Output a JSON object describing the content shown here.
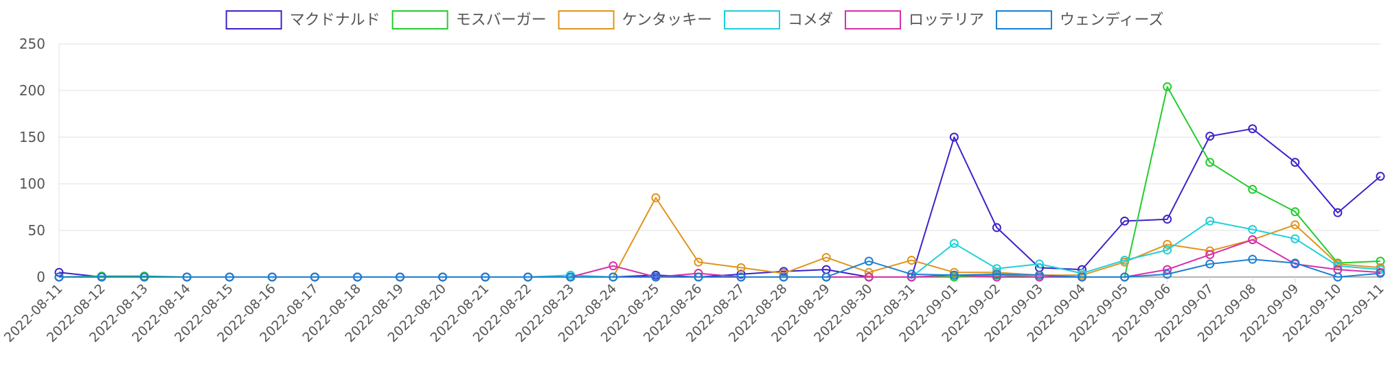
{
  "chart_data": {
    "type": "line",
    "title": "",
    "xlabel": "",
    "ylabel": "",
    "ylim": [
      0,
      250
    ],
    "yticks": [
      0,
      50,
      100,
      150,
      200,
      250
    ],
    "grid": true,
    "legend_position": "top-center",
    "categories": [
      "2022-08-11",
      "2022-08-12",
      "2022-08-13",
      "2022-08-14",
      "2022-08-15",
      "2022-08-16",
      "2022-08-17",
      "2022-08-18",
      "2022-08-19",
      "2022-08-20",
      "2022-08-21",
      "2022-08-22",
      "2022-08-23",
      "2022-08-24",
      "2022-08-25",
      "2022-08-26",
      "2022-08-27",
      "2022-08-28",
      "2022-08-29",
      "2022-08-30",
      "2022-08-31",
      "2022-09-01",
      "2022-09-02",
      "2022-09-03",
      "2022-09-04",
      "2022-09-05",
      "2022-09-06",
      "2022-09-07",
      "2022-09-08",
      "2022-09-09",
      "2022-09-10",
      "2022-09-11"
    ],
    "series": [
      {
        "name": "マクドナルド",
        "color": "#3b22c9",
        "values": [
          5,
          0,
          0,
          0,
          0,
          0,
          0,
          0,
          0,
          0,
          0,
          0,
          0,
          0,
          2,
          0,
          3,
          6,
          8,
          0,
          0,
          150,
          53,
          10,
          8,
          60,
          62,
          151,
          159,
          123,
          69,
          108
        ]
      },
      {
        "name": "モスバーガー",
        "color": "#22cc2e",
        "values": [
          0,
          1,
          1,
          0,
          0,
          0,
          0,
          0,
          0,
          0,
          0,
          0,
          0,
          0,
          0,
          0,
          0,
          0,
          0,
          0,
          0,
          0,
          2,
          0,
          0,
          0,
          204,
          123,
          94,
          70,
          15,
          17
        ]
      },
      {
        "name": "ケンタッキー",
        "color": "#e0941c",
        "values": [
          0,
          0,
          0,
          0,
          0,
          0,
          0,
          0,
          0,
          0,
          0,
          0,
          0,
          0,
          85,
          16,
          10,
          4,
          21,
          5,
          18,
          5,
          5,
          2,
          2,
          16,
          35,
          28,
          40,
          56,
          14,
          10
        ]
      },
      {
        "name": "コメダ",
        "color": "#1fd0d8",
        "values": [
          0,
          0,
          0,
          0,
          0,
          0,
          0,
          0,
          0,
          0,
          0,
          0,
          2,
          0,
          0,
          0,
          0,
          0,
          0,
          0,
          0,
          36,
          9,
          14,
          4,
          18,
          29,
          60,
          51,
          41,
          12,
          8
        ]
      },
      {
        "name": "ロッテリア",
        "color": "#d52fa8",
        "values": [
          0,
          0,
          0,
          0,
          0,
          0,
          0,
          0,
          0,
          0,
          0,
          0,
          0,
          12,
          0,
          4,
          0,
          0,
          0,
          0,
          0,
          2,
          0,
          0,
          0,
          0,
          8,
          24,
          40,
          14,
          8,
          5
        ]
      },
      {
        "name": "ウェンディーズ",
        "color": "#1a7fd4",
        "values": [
          0,
          0,
          0,
          0,
          0,
          0,
          0,
          0,
          0,
          0,
          0,
          0,
          0,
          0,
          0,
          0,
          0,
          0,
          0,
          17,
          3,
          2,
          3,
          2,
          0,
          0,
          3,
          14,
          19,
          15,
          0,
          4
        ]
      }
    ]
  }
}
